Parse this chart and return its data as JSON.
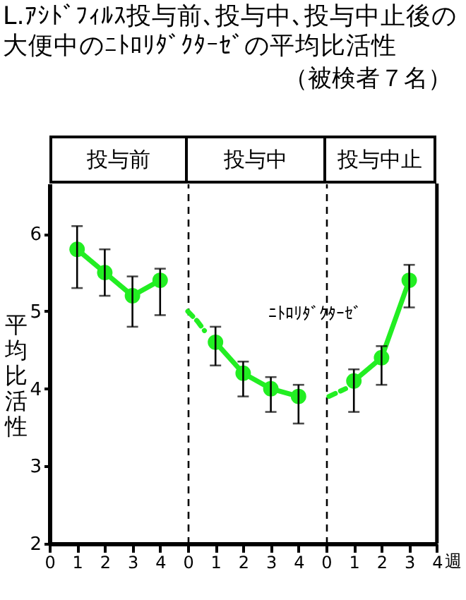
{
  "chart_data": [
    {
      "type": "other",
      "title": "L.ｱｼﾄﾞﾌｨﾙｽ投与前､投与中､投与中止後の大便中のﾆﾄﾛﾘﾀﾞｸﾀｰｾﾞの平均比活性",
      "subtitle": "（被検者７名）"
    },
    {
      "type": "line",
      "title": "投与前",
      "ylabel": "平均比活性",
      "xlim": [
        0,
        5
      ],
      "xticks": [
        0,
        1,
        2,
        3,
        4
      ],
      "ylim": [
        2,
        6.65
      ],
      "yticks": [
        2,
        3,
        4,
        5,
        6
      ],
      "marker": "circle",
      "series": [
        {
          "color": "#22ee22",
          "x": [
            1,
            2,
            3,
            4
          ],
          "values": [
            5.8,
            5.5,
            5.2,
            5.4
          ],
          "errors": [
            [
              5.3,
              6.1
            ],
            [
              5.2,
              5.8
            ],
            [
              4.8,
              5.45
            ],
            [
              4.95,
              5.55
            ]
          ]
        }
      ]
    },
    {
      "type": "line",
      "title": "投与中",
      "xlim": [
        0,
        5
      ],
      "xticks": [
        0,
        1,
        2,
        3,
        4
      ],
      "ylim": [
        2,
        6.65
      ],
      "tick_labels": "x",
      "marker": "circle",
      "annotations": [
        "ﾆﾄﾛﾘﾀﾞｸﾀｰｾﾞ"
      ],
      "series": [
        {
          "color": "#22ee22",
          "x": [
            1,
            2,
            3,
            4
          ],
          "values": [
            4.6,
            4.2,
            4.0,
            3.9
          ],
          "errors": [
            [
              4.3,
              4.8
            ],
            [
              3.9,
              4.35
            ],
            [
              3.7,
              4.15
            ],
            [
              3.55,
              4.05
            ]
          ]
        },
        {
          "type": "line",
          "line_style": "dashed",
          "marker": "none",
          "color": "#22ee22",
          "x": [
            0,
            0.35,
            0.6
          ],
          "values": [
            5.0,
            4.87,
            4.75
          ]
        }
      ]
    },
    {
      "type": "line",
      "title": "投与中止",
      "xlabel": "週",
      "xlim": [
        0,
        4
      ],
      "xticks": [
        0,
        1,
        2,
        3,
        4
      ],
      "ylim": [
        2,
        6.65
      ],
      "tick_labels": "x",
      "marker": "circle",
      "series": [
        {
          "color": "#22ee22",
          "x": [
            1,
            2,
            3
          ],
          "values": [
            4.1,
            4.4,
            5.4
          ],
          "errors": [
            [
              3.7,
              4.25
            ],
            [
              4.05,
              4.55
            ],
            [
              5.05,
              5.6
            ]
          ]
        },
        {
          "type": "line",
          "line_style": "dashed",
          "marker": "none",
          "color": "#22ee22",
          "x": [
            0.1,
            0.7
          ],
          "values": [
            3.9,
            4.0
          ]
        }
      ]
    }
  ]
}
